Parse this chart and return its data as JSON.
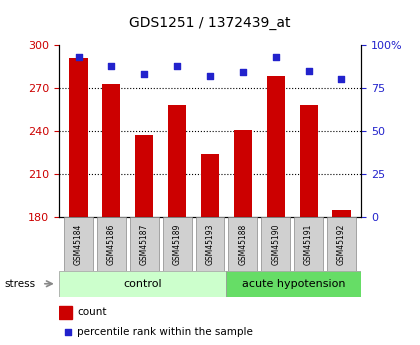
{
  "title": "GDS1251 / 1372439_at",
  "samples": [
    "GSM45184",
    "GSM45186",
    "GSM45187",
    "GSM45189",
    "GSM45193",
    "GSM45188",
    "GSM45190",
    "GSM45191",
    "GSM45192"
  ],
  "counts": [
    291,
    273,
    237,
    258,
    224,
    241,
    278,
    258,
    185
  ],
  "percentiles": [
    93,
    88,
    83,
    88,
    82,
    84,
    93,
    85,
    80
  ],
  "bar_color": "#cc0000",
  "dot_color": "#2222cc",
  "ymin": 180,
  "ymax": 300,
  "yticks": [
    180,
    210,
    240,
    270,
    300
  ],
  "y2min": 0,
  "y2max": 100,
  "y2ticks": [
    0,
    25,
    50,
    75,
    100
  ],
  "y2ticklabels": [
    "0",
    "25",
    "50",
    "75",
    "100%"
  ],
  "control_color": "#ccffcc",
  "acute_color": "#66dd66",
  "label_bg_color": "#d0d0d0",
  "n_control": 5,
  "n_acute": 4
}
